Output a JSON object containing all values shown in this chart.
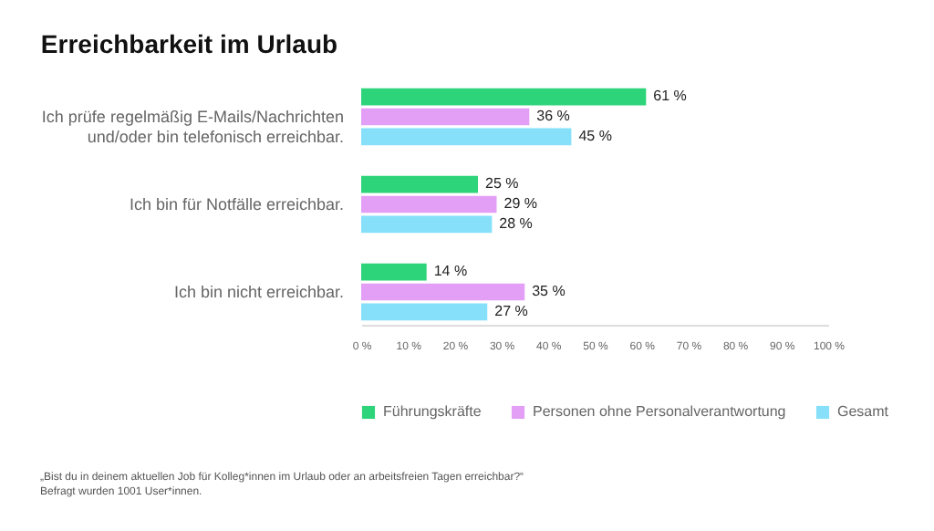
{
  "chart_data": {
    "type": "bar",
    "orientation": "horizontal",
    "title": "Erreichbarkeit im Urlaub",
    "categories": [
      "Ich prüfe regelmäßig E-Mails/Nachrichten und/oder bin telefonisch erreichbar.",
      "Ich bin für Notfälle erreichbar.",
      "Ich bin nicht erreichbar."
    ],
    "series": [
      {
        "name": "Führungskräfte",
        "color": "#2ed47a",
        "values": [
          61,
          25,
          14
        ],
        "value_labels": [
          "61 %",
          "25 %",
          "14 %"
        ]
      },
      {
        "name": "Personen ohne Personalverantwortung",
        "color": "#e39ef5",
        "values": [
          36,
          29,
          35
        ],
        "value_labels": [
          "36 %",
          "29 %",
          "35 %"
        ]
      },
      {
        "name": "Gesamt",
        "color": "#86e0fa",
        "values": [
          45,
          28,
          27
        ],
        "value_labels": [
          "45 %",
          "28 %",
          "27 %"
        ]
      }
    ],
    "xlim": [
      0,
      100
    ],
    "xticks": [
      {
        "value": 0,
        "label": "0 %"
      },
      {
        "value": 10,
        "label": "10 %"
      },
      {
        "value": 20,
        "label": "20 %"
      },
      {
        "value": 30,
        "label": "30 %"
      },
      {
        "value": 40,
        "label": "40 %"
      },
      {
        "value": 50,
        "label": "50 %"
      },
      {
        "value": 60,
        "label": "60 %"
      },
      {
        "value": 70,
        "label": "70 %"
      },
      {
        "value": 80,
        "label": "80 %"
      },
      {
        "value": 90,
        "label": "90 %"
      },
      {
        "value": 100,
        "label": "100 %"
      }
    ],
    "grid": false,
    "legend": "bottom",
    "annotations": [
      "„Bist du in deinem aktuellen Job für Kolleg*innen im Urlaub oder an arbeitsfreien Tagen erreichbar?“",
      "Befragt wurden 1001 User*innen."
    ]
  }
}
